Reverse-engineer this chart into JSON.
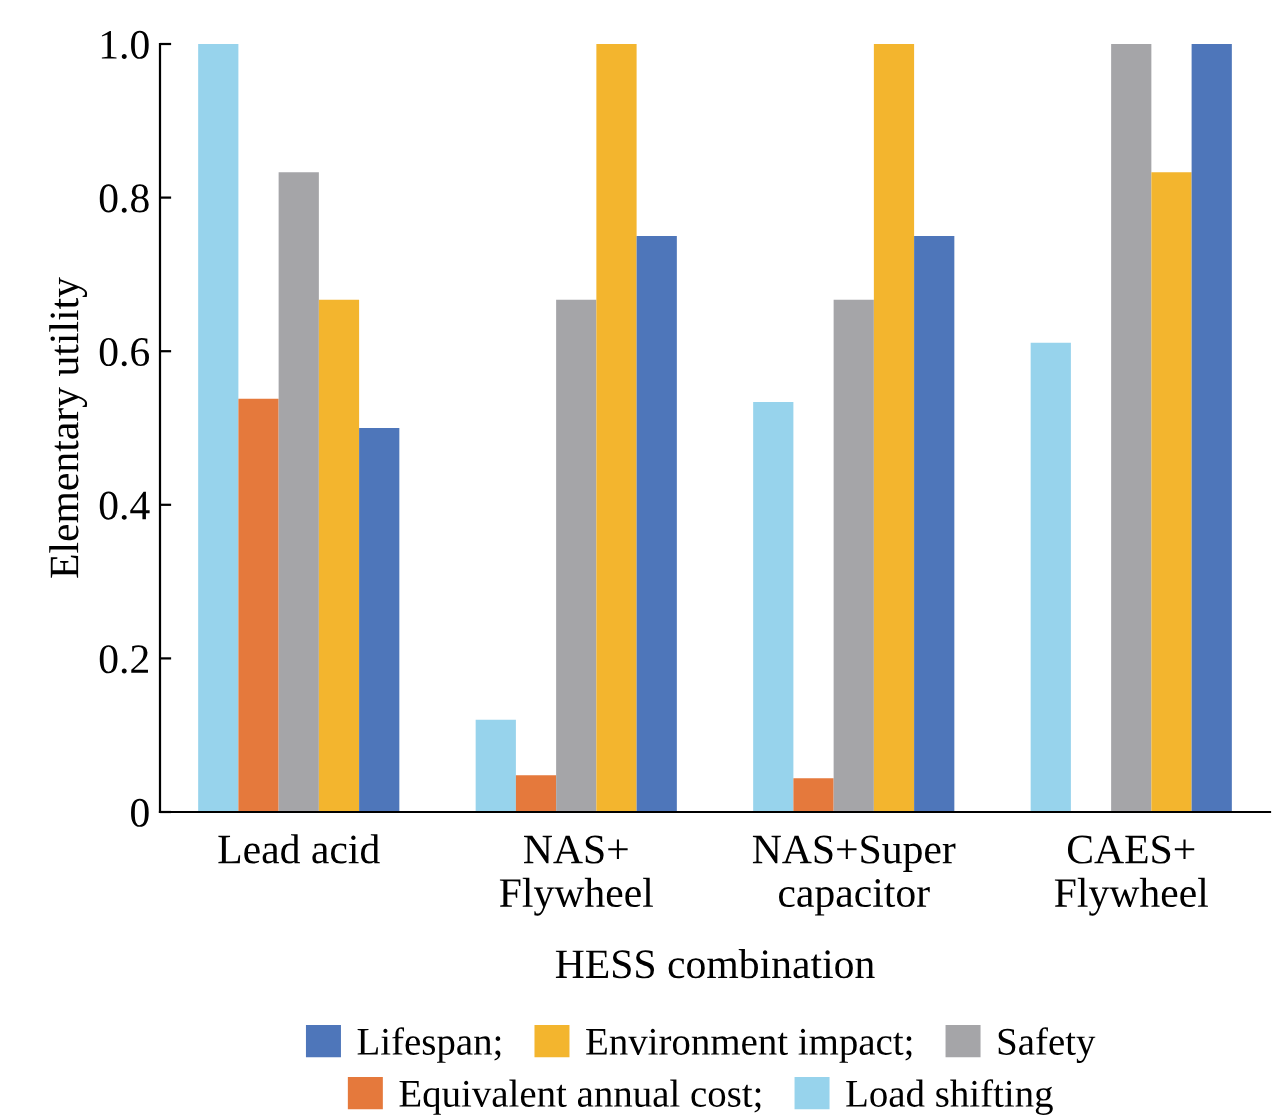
{
  "chart_data": {
    "type": "bar",
    "xlabel": "HESS combination",
    "ylabel": "Elementary utility",
    "categories": [
      "Lead acid",
      "NAS+\nFlywheel",
      "NAS+Super\ncapacitor",
      "CAES+\nFlywheel"
    ],
    "series": [
      {
        "name": "Load shifting",
        "color": "#97d3ec",
        "values": [
          1.0,
          0.12,
          0.534,
          0.611
        ]
      },
      {
        "name": "Equivalent annual cost;",
        "color": "#e5793c",
        "values": [
          0.538,
          0.048,
          0.044,
          0
        ]
      },
      {
        "name": "Safety",
        "color": "#a5a5a8",
        "values": [
          0.833,
          0.667,
          0.667,
          1.0
        ]
      },
      {
        "name": "Environment impact;",
        "color": "#f3b52e",
        "values": [
          0.667,
          1.0,
          1.0,
          0.833
        ]
      },
      {
        "name": "Lifespan;",
        "color": "#4e76ba",
        "values": [
          0.5,
          0.75,
          0.75,
          1.0
        ]
      }
    ],
    "ylim": [
      0,
      1.0
    ],
    "yticks": [
      0,
      {
        "value": 0.2,
        "label": "0.2"
      },
      {
        "value": 0.4,
        "label": "0.4"
      },
      {
        "value": 0.6,
        "label": "0.6"
      },
      {
        "value": 0.8,
        "label": "0.8"
      },
      {
        "value": 1.0,
        "label": "1.0"
      }
    ],
    "grid": false,
    "legend": "bottom"
  }
}
